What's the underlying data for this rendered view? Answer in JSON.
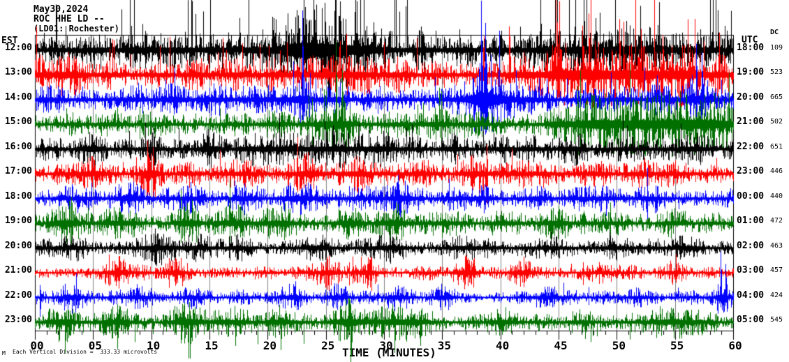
{
  "header": {
    "date": "May30,2024",
    "station": "ROC HHE LD --",
    "location": "(LD01: Rochester)"
  },
  "axes": {
    "left_timezone": "EST",
    "right_timezone": "UTC",
    "dc_header": "DC",
    "x_title": "TIME (MINUTES)",
    "footnote": "Each Vertical Division =  333.33 microvolts",
    "corner_mark": "M"
  },
  "chart_data": {
    "type": "seismogram-helicorder",
    "title": "ROC HHE LD -- (LD01: Rochester) May30,2024",
    "x_axis": {
      "label": "TIME (MINUTES)",
      "range_minutes": [
        0,
        60
      ],
      "major_tick_every_min": 5,
      "minor_tick_every_min": 1,
      "tick_labels": [
        "00",
        "05",
        "10",
        "15",
        "20",
        "25",
        "30",
        "35",
        "40",
        "45",
        "50",
        "55",
        "60"
      ]
    },
    "vertical_division_microvolts": 333.33,
    "left_timezone": "EST",
    "right_timezone": "UTC",
    "grid": {
      "vertical_every_min": 5,
      "color": "#808080"
    },
    "colors_cycle": [
      "#000000",
      "#ff0000",
      "#0000ff",
      "#007000"
    ],
    "rows": [
      {
        "est": "12:00",
        "utc": "18:00",
        "dc": "109",
        "color": "#000000",
        "seed": 7,
        "base": 12,
        "spike_prob": 0.05,
        "spike_scale": 4,
        "spike_dir": 1,
        "bursts": [
          [
            13,
            3,
            4
          ],
          [
            23,
            1.2,
            14
          ],
          [
            25.3,
            2.6,
            22
          ],
          [
            47,
            5,
            5
          ],
          [
            53,
            4,
            5
          ]
        ],
        "spikes": [
          [
            8.3,
            35,
            6
          ],
          [
            17.6,
            42,
            8
          ],
          [
            20.4,
            48,
            10
          ],
          [
            23.2,
            62,
            14
          ],
          [
            24.9,
            68,
            16
          ],
          [
            26.2,
            70,
            18
          ],
          [
            27.5,
            55,
            12
          ],
          [
            29.1,
            40,
            10
          ],
          [
            33.2,
            34,
            8
          ],
          [
            36.5,
            30,
            8
          ],
          [
            40.1,
            28,
            8
          ],
          [
            44.3,
            30,
            10
          ],
          [
            48.2,
            46,
            20
          ],
          [
            50.8,
            42,
            18
          ],
          [
            53.5,
            36,
            12
          ],
          [
            57.2,
            30,
            8
          ]
        ]
      },
      {
        "est": "13:00",
        "utc": "19:00",
        "dc": "523",
        "color": "#ff0000",
        "seed": 1007,
        "base": 11,
        "spike_prob": 0.04,
        "spike_scale": 3.5,
        "spike_dir": 1,
        "bursts": [
          [
            2,
            1.5,
            5
          ],
          [
            25,
            3,
            6
          ],
          [
            46,
            3,
            10
          ],
          [
            51,
            3,
            11
          ],
          [
            56,
            2,
            7
          ]
        ],
        "spikes": [
          [
            0.6,
            28,
            26
          ],
          [
            6.2,
            20,
            16
          ],
          [
            25.4,
            24,
            18
          ],
          [
            44.9,
            75,
            20
          ],
          [
            47.6,
            88,
            24
          ],
          [
            50.2,
            80,
            24
          ],
          [
            52.1,
            66,
            18
          ],
          [
            56.3,
            40,
            14
          ]
        ]
      },
      {
        "est": "14:00",
        "utc": "20:00",
        "dc": "665",
        "color": "#0000ff",
        "seed": 2007,
        "base": 10,
        "spike_prob": 0.02,
        "spike_scale": 2.5,
        "spike_dir": 1,
        "bursts": [
          [
            20,
            4,
            3
          ],
          [
            23,
            0.5,
            8
          ],
          [
            38.5,
            0.7,
            26
          ],
          [
            39.8,
            1.5,
            8
          ],
          [
            57,
            1,
            10
          ]
        ],
        "spikes": [
          [
            23.0,
            128,
            22
          ],
          [
            38.35,
            142,
            45
          ],
          [
            38.7,
            110,
            50
          ],
          [
            44.0,
            30,
            16
          ],
          [
            56.8,
            80,
            28
          ],
          [
            57.3,
            68,
            22
          ]
        ]
      },
      {
        "est": "15:00",
        "utc": "21:00",
        "dc": "502",
        "color": "#007000",
        "seed": 3007,
        "base": 9,
        "spike_prob": 0.02,
        "spike_scale": 2.5,
        "spike_dir": 0,
        "bursts": [
          [
            26,
            1,
            13
          ],
          [
            35,
            4,
            2
          ],
          [
            48,
            2,
            8
          ],
          [
            52.5,
            3.5,
            11
          ],
          [
            57,
            2.5,
            13
          ]
        ],
        "spikes": [
          [
            7.1,
            24,
            10
          ],
          [
            25.85,
            118,
            26
          ],
          [
            26.4,
            78,
            18
          ],
          [
            46.6,
            55,
            18
          ],
          [
            53.2,
            40,
            22
          ],
          [
            58.0,
            35,
            20
          ]
        ]
      },
      {
        "est": "16:00",
        "utc": "22:00",
        "dc": "651",
        "color": "#000000",
        "seed": 4007,
        "base": 8,
        "spike_prob": 0.015,
        "spike_scale": 2.2,
        "spike_dir": 1,
        "bursts": [
          [
            5,
            0.6,
            7
          ],
          [
            10,
            0.6,
            7
          ],
          [
            15,
            0.6,
            7
          ],
          [
            20.5,
            2,
            5
          ],
          [
            25.5,
            2,
            7
          ],
          [
            30,
            1,
            5
          ],
          [
            36,
            1,
            5
          ],
          [
            41,
            1,
            4
          ],
          [
            46,
            1,
            4
          ],
          [
            51,
            1,
            4
          ],
          [
            56,
            1,
            4
          ]
        ],
        "spikes": [
          [
            10.2,
            30,
            24
          ],
          [
            25.6,
            34,
            20
          ],
          [
            30.3,
            24,
            14
          ],
          [
            36.1,
            20,
            12
          ]
        ]
      },
      {
        "est": "17:00",
        "utc": "23:00",
        "dc": "446",
        "color": "#ff0000",
        "seed": 5007,
        "base": 8,
        "spike_prob": 0.015,
        "spike_scale": 2.2,
        "spike_dir": 0,
        "bursts": [
          [
            4.8,
            1,
            7
          ],
          [
            9.9,
            0.5,
            12
          ],
          [
            18,
            1,
            5
          ],
          [
            23.2,
            1,
            7
          ],
          [
            28,
            1,
            5
          ],
          [
            33,
            1,
            5
          ],
          [
            38,
            1,
            5
          ],
          [
            43,
            1,
            4
          ],
          [
            48,
            1,
            4
          ],
          [
            53,
            1,
            3
          ]
        ],
        "spikes": [
          [
            9.65,
            48,
            44
          ],
          [
            10.15,
            38,
            34
          ],
          [
            23.3,
            28,
            18
          ],
          [
            33.4,
            20,
            14
          ]
        ]
      },
      {
        "est": "18:00",
        "utc": "00:00",
        "dc": "440",
        "color": "#0000ff",
        "seed": 6007,
        "base": 7,
        "spike_prob": 0.01,
        "spike_scale": 2,
        "spike_dir": 0,
        "bursts": [
          [
            3,
            1,
            5
          ],
          [
            8,
            1,
            5
          ],
          [
            13.2,
            1,
            6
          ],
          [
            18,
            1,
            5
          ],
          [
            23,
            1,
            7
          ],
          [
            28,
            1,
            5
          ],
          [
            31.2,
            1,
            7
          ],
          [
            38,
            1,
            5
          ],
          [
            43,
            1,
            5
          ],
          [
            48,
            1,
            4
          ],
          [
            53,
            1,
            4
          ]
        ],
        "spikes": [
          [
            13.4,
            24,
            20
          ],
          [
            23.2,
            20,
            16
          ],
          [
            31.2,
            34,
            30
          ],
          [
            48.1,
            18,
            14
          ]
        ]
      },
      {
        "est": "19:00",
        "utc": "01:00",
        "dc": "472",
        "color": "#007000",
        "seed": 7007,
        "base": 7,
        "spike_prob": 0.012,
        "spike_scale": 2,
        "spike_dir": 0,
        "bursts": [
          [
            2.7,
            1,
            9
          ],
          [
            7.6,
            1,
            7
          ],
          [
            13.2,
            1,
            9
          ],
          [
            17.2,
            1,
            7
          ],
          [
            21.2,
            1,
            7
          ],
          [
            27,
            1,
            7
          ],
          [
            31,
            1,
            7
          ],
          [
            35.5,
            1,
            5
          ],
          [
            40,
            1,
            5
          ],
          [
            45,
            1,
            5
          ],
          [
            50,
            1,
            4
          ],
          [
            55,
            1,
            4
          ]
        ],
        "spikes": [
          [
            3.1,
            38,
            30
          ],
          [
            13.5,
            34,
            26
          ],
          [
            21.2,
            24,
            20
          ],
          [
            31.0,
            30,
            24
          ],
          [
            45.2,
            18,
            14
          ]
        ]
      },
      {
        "est": "20:00",
        "utc": "02:00",
        "dc": "463",
        "color": "#000000",
        "seed": 8007,
        "base": 6,
        "spike_prob": 0.01,
        "spike_scale": 2,
        "spike_dir": 0,
        "bursts": [
          [
            3,
            1,
            5
          ],
          [
            10.2,
            1,
            7
          ],
          [
            13.5,
            1,
            5
          ],
          [
            17.3,
            1,
            5
          ],
          [
            24,
            1,
            5
          ],
          [
            30.4,
            1,
            7
          ],
          [
            37,
            1,
            5
          ],
          [
            44.5,
            1,
            4
          ],
          [
            50,
            1,
            4
          ],
          [
            55.5,
            1,
            4
          ]
        ],
        "spikes": [
          [
            10.3,
            28,
            24
          ],
          [
            17.4,
            20,
            16
          ],
          [
            30.5,
            24,
            20
          ],
          [
            44.6,
            16,
            12
          ]
        ]
      },
      {
        "est": "21:00",
        "utc": "03:00",
        "dc": "457",
        "color": "#ff0000",
        "seed": 9007,
        "base": 5,
        "spike_prob": 0.008,
        "spike_scale": 2,
        "spike_dir": 0,
        "bursts": [
          [
            7.1,
            0.7,
            9
          ],
          [
            12,
            0.7,
            8
          ],
          [
            25.1,
            0.7,
            9
          ],
          [
            28.5,
            0.7,
            9
          ],
          [
            37.1,
            0.7,
            8
          ],
          [
            42.1,
            0.7,
            8
          ],
          [
            49,
            0.7,
            4
          ],
          [
            55,
            0.7,
            5
          ]
        ],
        "spikes": [
          [
            7.2,
            24,
            20
          ],
          [
            12.1,
            20,
            16
          ],
          [
            28.6,
            22,
            18
          ],
          [
            37.3,
            18,
            14
          ],
          [
            42.2,
            16,
            12
          ]
        ]
      },
      {
        "est": "22:00",
        "utc": "04:00",
        "dc": "424",
        "color": "#0000ff",
        "seed": 10007,
        "base": 5,
        "spike_prob": 0.008,
        "spike_scale": 2,
        "spike_dir": 0,
        "bursts": [
          [
            3,
            0.7,
            7
          ],
          [
            9,
            0.7,
            7
          ],
          [
            13.4,
            0.7,
            6
          ],
          [
            22.2,
            0.7,
            7
          ],
          [
            26,
            0.7,
            7
          ],
          [
            31,
            0.7,
            6
          ],
          [
            35.2,
            0.7,
            6
          ],
          [
            44,
            0.7,
            5
          ],
          [
            52,
            0.7,
            5
          ],
          [
            59,
            0.5,
            8
          ]
        ],
        "spikes": [
          [
            0.4,
            18,
            28
          ],
          [
            22.3,
            16,
            14
          ],
          [
            35.2,
            16,
            14
          ],
          [
            58.9,
            66,
            14
          ],
          [
            59.35,
            48,
            12
          ]
        ]
      },
      {
        "est": "23:00",
        "utc": "05:00",
        "dc": "545",
        "color": "#007000",
        "seed": 11007,
        "base": 6,
        "spike_prob": 0.012,
        "spike_scale": 2.2,
        "spike_dir": -1,
        "bursts": [
          [
            2.5,
            1,
            9
          ],
          [
            7,
            1,
            9
          ],
          [
            13.2,
            1,
            11
          ],
          [
            17.2,
            1,
            7
          ],
          [
            21,
            1,
            9
          ],
          [
            27.1,
            1,
            11
          ],
          [
            31,
            1,
            9
          ],
          [
            33,
            1,
            7
          ],
          [
            40,
            1,
            5
          ],
          [
            47,
            1,
            5
          ],
          [
            55,
            2,
            7
          ]
        ],
        "spikes": [
          [
            2.6,
            14,
            44
          ],
          [
            7.1,
            12,
            38
          ],
          [
            13.3,
            16,
            52
          ],
          [
            17.2,
            10,
            34
          ],
          [
            21.1,
            10,
            40
          ],
          [
            27.2,
            12,
            48
          ],
          [
            30.9,
            10,
            44
          ],
          [
            33.1,
            10,
            34
          ],
          [
            47.3,
            8,
            24
          ]
        ]
      }
    ]
  }
}
